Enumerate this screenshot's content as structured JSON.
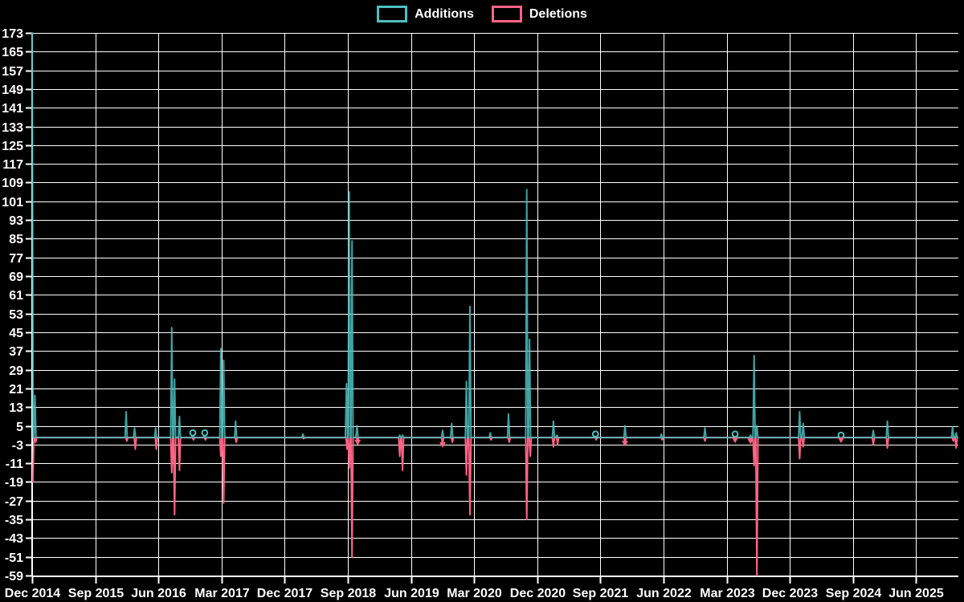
{
  "legend": {
    "items": [
      {
        "label": "Additions",
        "color": "#4BC0C0"
      },
      {
        "label": "Deletions",
        "color": "#FF6384"
      }
    ]
  },
  "chart_data": {
    "type": "line",
    "title": "",
    "xlabel": "",
    "ylabel": "",
    "background_color": "#000000",
    "grid_color": "#FFFFFF",
    "axis_color": "#FFFFFF",
    "text_color": "#FFFFFF",
    "legend_position": "top-center",
    "grid_on": true,
    "ylim": [
      -59,
      173
    ],
    "y_tick_step": 8,
    "y_ticks": [
      173,
      165,
      157,
      149,
      141,
      133,
      125,
      117,
      109,
      101,
      93,
      85,
      77,
      69,
      61,
      53,
      45,
      37,
      29,
      21,
      13,
      5,
      -3,
      -11,
      -19,
      -27,
      -35,
      -43,
      -51,
      -59
    ],
    "x_tick_labels": [
      "Dec 2014",
      "Sep 2015",
      "Jun 2016",
      "Mar 2017",
      "Dec 2017",
      "Sep 2018",
      "Jun 2019",
      "Mar 2020",
      "Dec 2020",
      "Sep 2021",
      "Jun 2022",
      "Mar 2023",
      "Dec 2023",
      "Sep 2024",
      "Jun 2025"
    ],
    "x_months_per_tick": 9,
    "x_epoch_label": "Dec 2014",
    "xlim_months": [
      0,
      131.9
    ],
    "series": [
      {
        "name": "Additions",
        "color": "#4BC0C0",
        "baseline": 0,
        "marker_shape": "circle",
        "events": [
          [
            0,
            173
          ],
          [
            0.4,
            18
          ],
          [
            13.4,
            11
          ],
          [
            14.6,
            4
          ],
          [
            17.6,
            4
          ],
          [
            19.9,
            47
          ],
          [
            20.3,
            25
          ],
          [
            21.0,
            9
          ],
          [
            22.9,
            2,
            1
          ],
          [
            24.6,
            2,
            1
          ],
          [
            26.9,
            38
          ],
          [
            27.3,
            33
          ],
          [
            29.0,
            7
          ],
          [
            38.6,
            1.5
          ],
          [
            44.8,
            23
          ],
          [
            45.2,
            105
          ],
          [
            45.6,
            84
          ],
          [
            46.3,
            5
          ],
          [
            52.4,
            1
          ],
          [
            52.8,
            1
          ],
          [
            58.5,
            3
          ],
          [
            59.8,
            6
          ],
          [
            61.9,
            24
          ],
          [
            62.4,
            56
          ],
          [
            65.3,
            2
          ],
          [
            67.9,
            10
          ],
          [
            70.5,
            106
          ],
          [
            70.9,
            42
          ],
          [
            74.3,
            7
          ],
          [
            74.8,
            1
          ],
          [
            80.3,
            1.5,
            1
          ],
          [
            84.5,
            5
          ],
          [
            89.7,
            1.5
          ],
          [
            95.9,
            4
          ],
          [
            100.2,
            1.5,
            1
          ],
          [
            102.4,
            1
          ],
          [
            102.9,
            35
          ],
          [
            103.3,
            5
          ],
          [
            109.4,
            11
          ],
          [
            109.9,
            6
          ],
          [
            115.3,
            1,
            1
          ],
          [
            119.9,
            3
          ],
          [
            121.9,
            7
          ],
          [
            131.2,
            4.5
          ],
          [
            131.7,
            2
          ]
        ]
      },
      {
        "name": "Deletions",
        "color": "#FF6384",
        "baseline": 0,
        "marker_shape": "triangle-down",
        "events": [
          [
            0.1,
            -19
          ],
          [
            0.5,
            -2
          ],
          [
            13.5,
            -1.5
          ],
          [
            14.7,
            -5
          ],
          [
            17.7,
            -5
          ],
          [
            19.9,
            -15
          ],
          [
            20.3,
            -33
          ],
          [
            21.0,
            -14
          ],
          [
            23.0,
            -1
          ],
          [
            24.7,
            -1
          ],
          [
            26.9,
            -8
          ],
          [
            27.3,
            -28
          ],
          [
            29.1,
            -2
          ],
          [
            38.7,
            -0.5
          ],
          [
            44.9,
            -5
          ],
          [
            45.2,
            -13
          ],
          [
            45.6,
            -51
          ],
          [
            46.4,
            -2,
            1
          ],
          [
            52.4,
            -8
          ],
          [
            52.8,
            -14
          ],
          [
            58.5,
            -3,
            1
          ],
          [
            59.9,
            -2
          ],
          [
            61.9,
            -16
          ],
          [
            62.4,
            -33
          ],
          [
            65.4,
            -1
          ],
          [
            68.0,
            -2
          ],
          [
            70.5,
            -35
          ],
          [
            71.0,
            -8
          ],
          [
            74.3,
            -4
          ],
          [
            74.9,
            -3
          ],
          [
            80.4,
            -1
          ],
          [
            84.5,
            -2.5,
            1
          ],
          [
            89.8,
            -1
          ],
          [
            95.9,
            -1.5
          ],
          [
            100.2,
            -1,
            1
          ],
          [
            102.4,
            -1.5,
            1
          ],
          [
            102.9,
            -12
          ],
          [
            103.3,
            -59
          ],
          [
            109.4,
            -9
          ],
          [
            109.9,
            -4
          ],
          [
            115.3,
            -1,
            1
          ],
          [
            119.9,
            -3
          ],
          [
            121.9,
            -4.5
          ],
          [
            131.3,
            -1.5
          ],
          [
            131.7,
            -4.5
          ]
        ]
      }
    ]
  }
}
